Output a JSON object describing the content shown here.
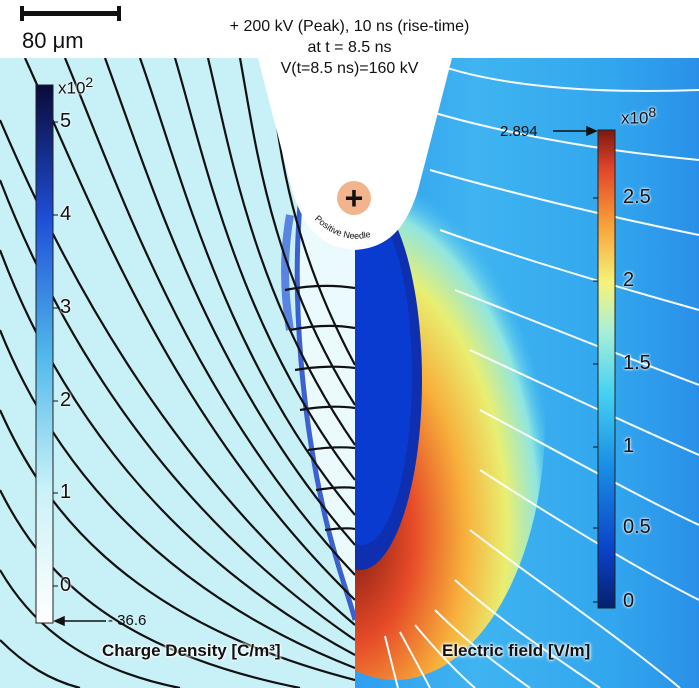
{
  "scale_bar": {
    "label": "80 μm"
  },
  "title": {
    "line1": "+ 200 kV (Peak), 10 ns (rise-time)",
    "line2": "at t = 8.5 ns",
    "line3": "V(t=8.5 ns)=160 kV"
  },
  "needle": {
    "symbol": "+",
    "label": "Positive Needle"
  },
  "left_colorbar": {
    "exponent_base": "x10",
    "exponent_power": "2",
    "ticks": [
      "0",
      "1",
      "2",
      "3",
      "4",
      "5"
    ],
    "min_marker": "- 36.6",
    "title": "Charge Density [C/m³]",
    "color_low": "#ffffff",
    "color_high": "#0a0a3a"
  },
  "right_colorbar": {
    "exponent_base": "x10",
    "exponent_power": "8",
    "ticks": [
      "0",
      "0.5",
      "1",
      "1.5",
      "2",
      "2.5"
    ],
    "max_marker": "2.894",
    "title": "Electric field [V/m]"
  }
}
